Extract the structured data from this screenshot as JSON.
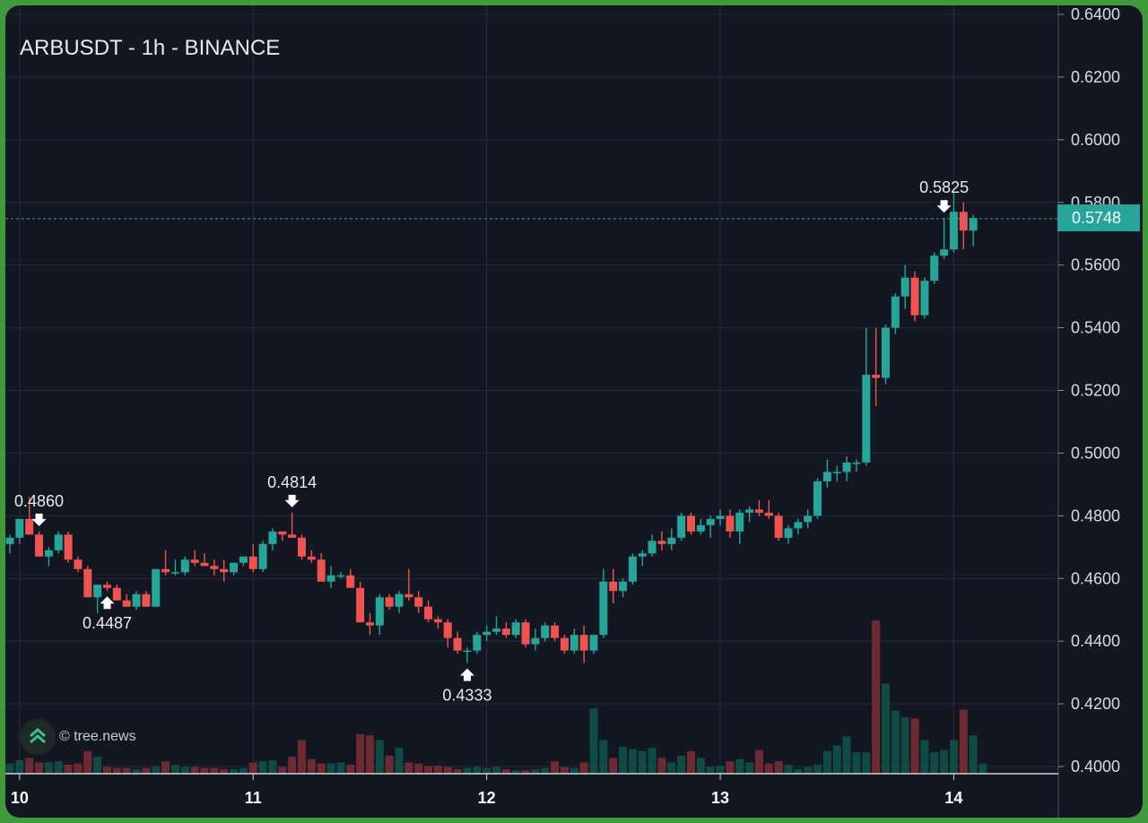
{
  "chart_data": {
    "type": "candlestick",
    "title": "ARBUSDT - 1h - BINANCE",
    "watermark": "© tree.news",
    "ylim": [
      0.4,
      0.64
    ],
    "y_ticks": [
      "0.6400",
      "0.6200",
      "0.6000",
      "0.5800",
      "0.5600",
      "0.5400",
      "0.5200",
      "0.5000",
      "0.4800",
      "0.4600",
      "0.4400",
      "0.4200",
      "0.4000"
    ],
    "x_ticks": [
      {
        "label": "10",
        "index": 1
      },
      {
        "label": "11",
        "index": 25
      },
      {
        "label": "12",
        "index": 49
      },
      {
        "label": "13",
        "index": 73
      },
      {
        "label": "14",
        "index": 97
      }
    ],
    "last_price": "0.5748",
    "annotations": [
      {
        "label": "0.4860",
        "index": 3,
        "kind": "high"
      },
      {
        "label": "0.4487",
        "index": 10,
        "kind": "low"
      },
      {
        "label": "0.4814",
        "index": 29,
        "kind": "high"
      },
      {
        "label": "0.4333",
        "index": 47,
        "kind": "low"
      },
      {
        "label": "0.5825",
        "index": 96,
        "kind": "high"
      }
    ],
    "candles": [
      [
        0.471,
        0.474,
        0.468,
        0.473
      ],
      [
        0.473,
        0.479,
        0.471,
        0.479
      ],
      [
        0.479,
        0.486,
        0.474,
        0.474
      ],
      [
        0.474,
        0.475,
        0.467,
        0.467
      ],
      [
        0.467,
        0.47,
        0.464,
        0.469
      ],
      [
        0.469,
        0.475,
        0.468,
        0.474
      ],
      [
        0.474,
        0.475,
        0.465,
        0.466
      ],
      [
        0.466,
        0.467,
        0.462,
        0.463
      ],
      [
        0.463,
        0.464,
        0.455,
        0.454
      ],
      [
        0.454,
        0.458,
        0.449,
        0.458
      ],
      [
        0.458,
        0.459,
        0.456,
        0.457
      ],
      [
        0.457,
        0.458,
        0.453,
        0.453
      ],
      [
        0.453,
        0.455,
        0.451,
        0.451
      ],
      [
        0.451,
        0.456,
        0.45,
        0.455
      ],
      [
        0.455,
        0.456,
        0.451,
        0.451
      ],
      [
        0.451,
        0.463,
        0.451,
        0.463
      ],
      [
        0.463,
        0.469,
        0.461,
        0.462
      ],
      [
        0.462,
        0.466,
        0.461,
        0.462
      ],
      [
        0.462,
        0.467,
        0.461,
        0.466
      ],
      [
        0.466,
        0.469,
        0.464,
        0.465
      ],
      [
        0.465,
        0.468,
        0.464,
        0.464
      ],
      [
        0.464,
        0.466,
        0.461,
        0.463
      ],
      [
        0.463,
        0.466,
        0.459,
        0.462
      ],
      [
        0.462,
        0.465,
        0.461,
        0.465
      ],
      [
        0.465,
        0.467,
        0.464,
        0.467
      ],
      [
        0.467,
        0.471,
        0.462,
        0.463
      ],
      [
        0.463,
        0.472,
        0.462,
        0.471
      ],
      [
        0.471,
        0.476,
        0.469,
        0.475
      ],
      [
        0.475,
        0.475,
        0.472,
        0.474
      ],
      [
        0.474,
        0.481,
        0.473,
        0.473
      ],
      [
        0.473,
        0.474,
        0.466,
        0.467
      ],
      [
        0.467,
        0.469,
        0.465,
        0.466
      ],
      [
        0.466,
        0.468,
        0.459,
        0.459
      ],
      [
        0.459,
        0.464,
        0.457,
        0.461
      ],
      [
        0.461,
        0.462,
        0.46,
        0.461
      ],
      [
        0.461,
        0.463,
        0.457,
        0.457
      ],
      [
        0.457,
        0.459,
        0.446,
        0.446
      ],
      [
        0.446,
        0.449,
        0.442,
        0.445
      ],
      [
        0.445,
        0.455,
        0.442,
        0.454
      ],
      [
        0.454,
        0.455,
        0.45,
        0.451
      ],
      [
        0.451,
        0.456,
        0.449,
        0.455
      ],
      [
        0.455,
        0.463,
        0.453,
        0.454
      ],
      [
        0.454,
        0.456,
        0.449,
        0.451
      ],
      [
        0.451,
        0.453,
        0.446,
        0.447
      ],
      [
        0.447,
        0.448,
        0.444,
        0.446
      ],
      [
        0.446,
        0.447,
        0.438,
        0.441
      ],
      [
        0.441,
        0.443,
        0.436,
        0.437
      ],
      [
        0.437,
        0.438,
        0.433,
        0.437
      ],
      [
        0.437,
        0.443,
        0.436,
        0.442
      ],
      [
        0.442,
        0.445,
        0.44,
        0.443
      ],
      [
        0.443,
        0.448,
        0.442,
        0.444
      ],
      [
        0.444,
        0.446,
        0.441,
        0.442
      ],
      [
        0.442,
        0.447,
        0.441,
        0.446
      ],
      [
        0.446,
        0.447,
        0.438,
        0.439
      ],
      [
        0.439,
        0.444,
        0.437,
        0.441
      ],
      [
        0.441,
        0.446,
        0.44,
        0.445
      ],
      [
        0.445,
        0.446,
        0.44,
        0.441
      ],
      [
        0.441,
        0.442,
        0.436,
        0.437
      ],
      [
        0.437,
        0.444,
        0.436,
        0.442
      ],
      [
        0.442,
        0.445,
        0.433,
        0.437
      ],
      [
        0.437,
        0.442,
        0.436,
        0.442
      ],
      [
        0.442,
        0.463,
        0.441,
        0.459
      ],
      [
        0.459,
        0.463,
        0.452,
        0.456
      ],
      [
        0.456,
        0.46,
        0.454,
        0.459
      ],
      [
        0.459,
        0.468,
        0.458,
        0.467
      ],
      [
        0.467,
        0.469,
        0.464,
        0.468
      ],
      [
        0.468,
        0.474,
        0.467,
        0.472
      ],
      [
        0.472,
        0.475,
        0.469,
        0.471
      ],
      [
        0.471,
        0.476,
        0.469,
        0.473
      ],
      [
        0.473,
        0.481,
        0.472,
        0.48
      ],
      [
        0.48,
        0.481,
        0.474,
        0.475
      ],
      [
        0.475,
        0.479,
        0.474,
        0.477
      ],
      [
        0.477,
        0.48,
        0.473,
        0.479
      ],
      [
        0.479,
        0.482,
        0.477,
        0.48
      ],
      [
        0.48,
        0.482,
        0.473,
        0.475
      ],
      [
        0.475,
        0.482,
        0.471,
        0.481
      ],
      [
        0.481,
        0.483,
        0.478,
        0.482
      ],
      [
        0.482,
        0.485,
        0.48,
        0.481
      ],
      [
        0.481,
        0.485,
        0.479,
        0.48
      ],
      [
        0.48,
        0.481,
        0.472,
        0.473
      ],
      [
        0.473,
        0.477,
        0.471,
        0.476
      ],
      [
        0.476,
        0.479,
        0.474,
        0.478
      ],
      [
        0.478,
        0.482,
        0.476,
        0.48
      ],
      [
        0.48,
        0.492,
        0.479,
        0.491
      ],
      [
        0.491,
        0.498,
        0.489,
        0.494
      ],
      [
        0.494,
        0.496,
        0.491,
        0.494
      ],
      [
        0.494,
        0.499,
        0.491,
        0.497
      ],
      [
        0.497,
        0.498,
        0.494,
        0.497
      ],
      [
        0.497,
        0.54,
        0.496,
        0.525
      ],
      [
        0.525,
        0.54,
        0.515,
        0.524
      ],
      [
        0.524,
        0.541,
        0.522,
        0.54
      ],
      [
        0.54,
        0.551,
        0.538,
        0.55
      ],
      [
        0.55,
        0.56,
        0.546,
        0.556
      ],
      [
        0.556,
        0.558,
        0.542,
        0.544
      ],
      [
        0.544,
        0.556,
        0.543,
        0.555
      ],
      [
        0.555,
        0.564,
        0.554,
        0.563
      ],
      [
        0.563,
        0.575,
        0.562,
        0.565
      ],
      [
        0.565,
        0.583,
        0.564,
        0.577
      ],
      [
        0.577,
        0.58,
        0.565,
        0.571
      ],
      [
        0.571,
        0.576,
        0.566,
        0.575
      ]
    ],
    "volumes": [
      0.9,
      1.2,
      1.4,
      1.0,
      1.0,
      1.1,
      0.8,
      0.9,
      2.0,
      1.5,
      0.6,
      0.5,
      0.5,
      0.4,
      0.5,
      0.6,
      1.1,
      0.8,
      0.6,
      0.6,
      0.5,
      0.5,
      0.4,
      0.4,
      0.5,
      1.0,
      1.1,
      1.2,
      0.6,
      1.5,
      3.0,
      1.3,
      0.9,
      0.9,
      1.0,
      0.8,
      3.5,
      3.4,
      3.0,
      1.6,
      2.3,
      1.0,
      0.9,
      0.7,
      0.7,
      0.6,
      0.4,
      0.5,
      0.6,
      0.5,
      0.6,
      0.4,
      0.3,
      0.3,
      0.4,
      0.5,
      1.1,
      0.6,
      0.5,
      1.0,
      5.8,
      3.0,
      1.4,
      2.4,
      2.2,
      2.0,
      2.3,
      1.4,
      1.0,
      1.6,
      2.0,
      1.4,
      0.6,
      0.7,
      1.1,
      1.3,
      1.0,
      2.1,
      0.9,
      1.1,
      0.8,
      0.4,
      0.6,
      0.8,
      2.0,
      2.5,
      3.3,
      1.9,
      1.9,
      13.6,
      8.0,
      5.6,
      5.0,
      4.9,
      3.0,
      1.9,
      2.1,
      3.0,
      5.7,
      3.4,
      0.9
    ]
  }
}
